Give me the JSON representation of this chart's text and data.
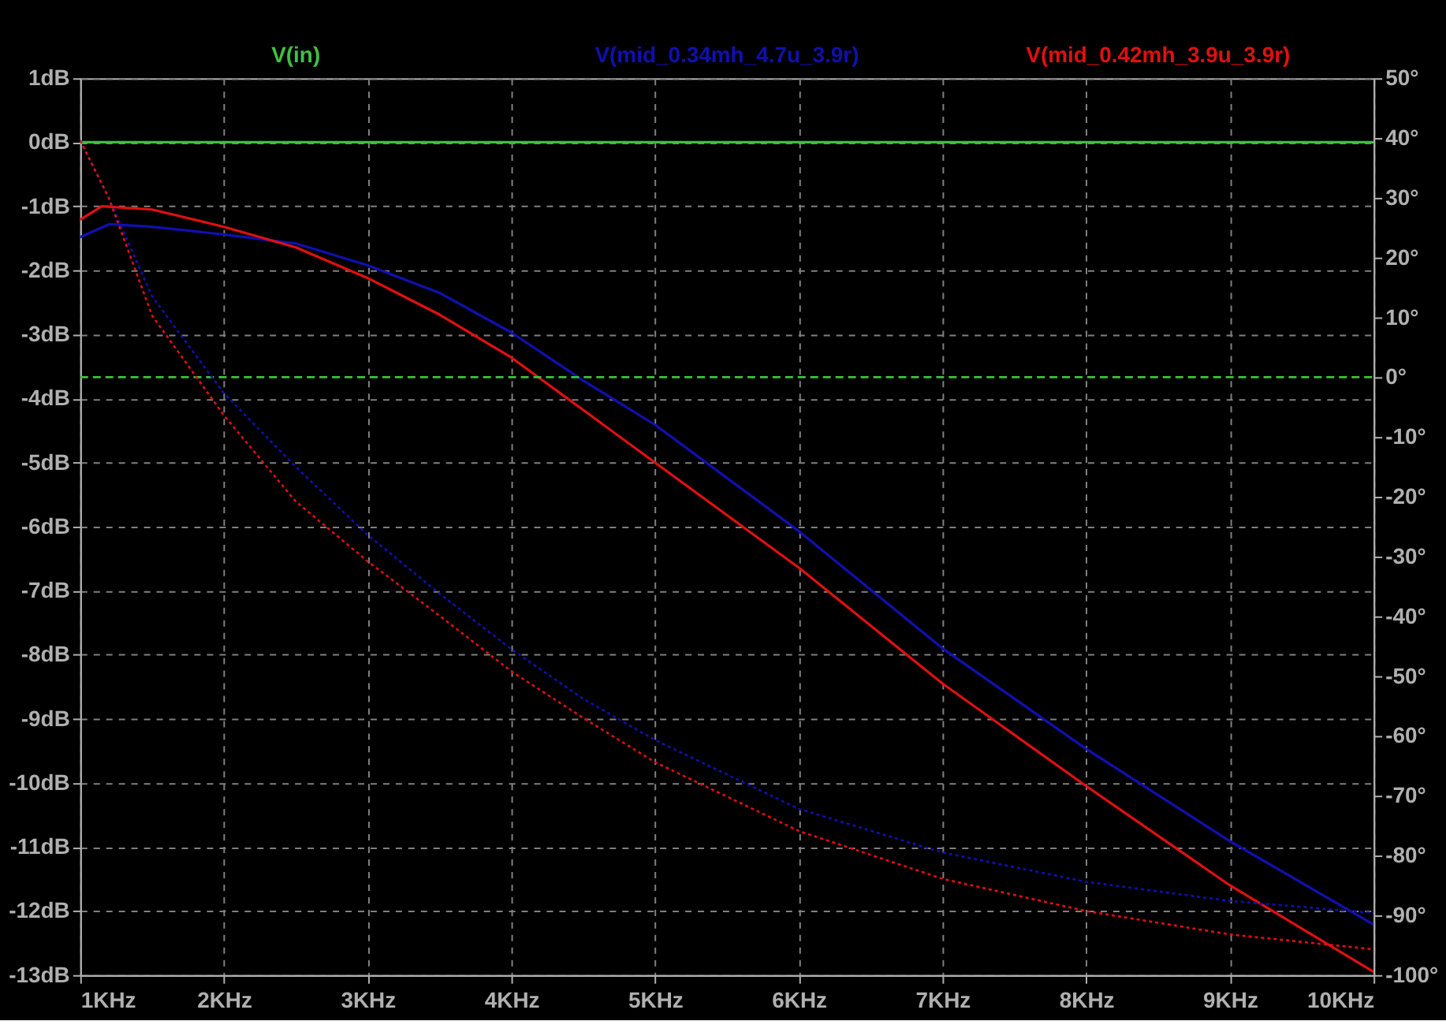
{
  "chart_data": {
    "type": "line",
    "xlim": [
      1,
      10
    ],
    "xticks": [
      {
        "value": 1,
        "label": "1KHz"
      },
      {
        "value": 2,
        "label": "2KHz"
      },
      {
        "value": 3,
        "label": "3KHz"
      },
      {
        "value": 4,
        "label": "4KHz"
      },
      {
        "value": 5,
        "label": "5KHz"
      },
      {
        "value": 6,
        "label": "6KHz"
      },
      {
        "value": 7,
        "label": "7KHz"
      },
      {
        "value": 8,
        "label": "8KHz"
      },
      {
        "value": 9,
        "label": "9KHz"
      },
      {
        "value": 10,
        "label": "10KHz"
      }
    ],
    "ylim": [
      -13,
      1
    ],
    "yticks": [
      {
        "value": 1,
        "label": "1dB"
      },
      {
        "value": 0,
        "label": "0dB"
      },
      {
        "value": -1,
        "label": "-1dB"
      },
      {
        "value": -2,
        "label": "-2dB"
      },
      {
        "value": -3,
        "label": "-3dB"
      },
      {
        "value": -4,
        "label": "-4dB"
      },
      {
        "value": -5,
        "label": "-5dB"
      },
      {
        "value": -6,
        "label": "-6dB"
      },
      {
        "value": -7,
        "label": "-7dB"
      },
      {
        "value": -8,
        "label": "-8dB"
      },
      {
        "value": -9,
        "label": "-9dB"
      },
      {
        "value": -10,
        "label": "-10dB"
      },
      {
        "value": -11,
        "label": "-11dB"
      },
      {
        "value": -12,
        "label": "-12dB"
      },
      {
        "value": -13,
        "label": "-13dB"
      }
    ],
    "y2lim": [
      -100,
      50
    ],
    "y2ticks": [
      {
        "value": 50,
        "label": "50°"
      },
      {
        "value": 40,
        "label": "40°"
      },
      {
        "value": 30,
        "label": "30°"
      },
      {
        "value": 20,
        "label": "20°"
      },
      {
        "value": 10,
        "label": "10°"
      },
      {
        "value": 0,
        "label": "0°"
      },
      {
        "value": -10,
        "label": "-10°"
      },
      {
        "value": -20,
        "label": "-20°"
      },
      {
        "value": -30,
        "label": "-30°"
      },
      {
        "value": -40,
        "label": "-40°"
      },
      {
        "value": -50,
        "label": "-50°"
      },
      {
        "value": -60,
        "label": "-60°"
      },
      {
        "value": -70,
        "label": "-70°"
      },
      {
        "value": -80,
        "label": "-80°"
      },
      {
        "value": -90,
        "label": "-90°"
      },
      {
        "value": -100,
        "label": "-100°"
      }
    ],
    "grid": true,
    "legend": "top",
    "marker": "none",
    "series": [
      {
        "name": "V(in)",
        "color": "#40c040",
        "line_style": "solid",
        "x": [
          1,
          10
        ],
        "values": [
          0,
          0
        ]
      },
      {
        "name": "V(mid_0.34mh_4.7u_3.9r)",
        "color": "#1010b0",
        "line_style": "solid",
        "x": [
          1,
          1.2,
          1.5,
          2,
          2.5,
          3,
          3.5,
          4,
          4.5,
          5,
          6,
          7,
          8,
          9,
          10
        ],
        "values": [
          -1.48,
          -1.28,
          -1.32,
          -1.44,
          -1.58,
          -1.92,
          -2.35,
          -2.97,
          -3.72,
          -4.41,
          -6.07,
          -7.9,
          -9.47,
          -10.91,
          -12.21
        ]
      },
      {
        "name": "V(mid_0.42mh_3.9u_3.9r)",
        "color": "#e01010",
        "line_style": "solid",
        "x": [
          1,
          1.15,
          1.5,
          2,
          2.5,
          3,
          3.5,
          4,
          4.5,
          5,
          6,
          7,
          8,
          9,
          10
        ],
        "values": [
          -1.21,
          -1.0,
          -1.05,
          -1.32,
          -1.64,
          -2.12,
          -2.69,
          -3.36,
          -4.18,
          -5.0,
          -6.64,
          -8.45,
          -10.05,
          -11.6,
          -12.95
        ]
      },
      {
        "color": "#40c040",
        "line_style": "dashed",
        "axis": "y2",
        "x": [
          1,
          10
        ],
        "values": [
          0,
          0
        ]
      },
      {
        "color": "#1010b0",
        "line_style": "dotted",
        "axis": "y2",
        "x": [
          1,
          1.2,
          1.5,
          2,
          2.5,
          3,
          3.5,
          4,
          4.5,
          5,
          6,
          7,
          8,
          9,
          10
        ],
        "values": [
          39.6,
          29.9,
          13.5,
          -2.7,
          -15,
          -26.4,
          -36.2,
          -45.5,
          -53.8,
          -60.7,
          -72.2,
          -79.5,
          -84.4,
          -87.6,
          -89.6
        ]
      },
      {
        "color": "#e01010",
        "line_style": "dotted",
        "axis": "y2",
        "x": [
          1,
          1.2,
          1.5,
          2,
          2.5,
          3,
          3.5,
          4,
          4.5,
          5,
          6,
          7,
          8,
          9,
          10
        ],
        "values": [
          39.6,
          29.9,
          10.3,
          -6.4,
          -20.8,
          -30.8,
          -39.9,
          -49.2,
          -57.0,
          -64.4,
          -75.9,
          -83.9,
          -89.3,
          -93.2,
          -95.7
        ]
      }
    ]
  }
}
